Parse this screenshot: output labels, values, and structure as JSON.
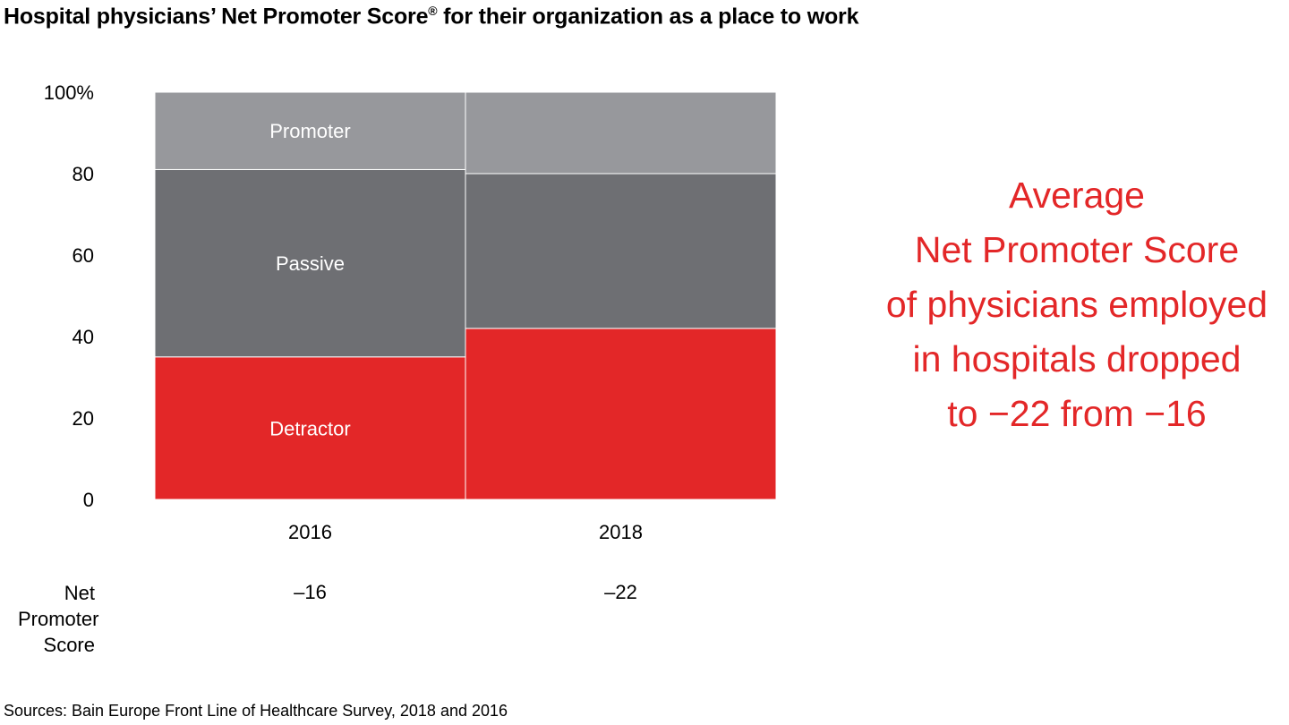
{
  "title": "Hospital physicians’ Net Promoter Score",
  "title_mark": "®",
  "title_rest": " for their organization as a place to work",
  "chart_data": {
    "type": "bar",
    "stacked": true,
    "categories": [
      "2016",
      "2018"
    ],
    "series": [
      {
        "name": "Detractor",
        "values": [
          35,
          42
        ],
        "color": "#e32728"
      },
      {
        "name": "Passive",
        "values": [
          46,
          38
        ],
        "color": "#6e6f73"
      },
      {
        "name": "Promoter",
        "values": [
          19,
          20
        ],
        "color": "#97989c"
      }
    ],
    "ylim": [
      0,
      100
    ],
    "yticks": [
      "0",
      "20",
      "40",
      "60",
      "80",
      "100%"
    ],
    "ytick_values": [
      0,
      20,
      40,
      60,
      80,
      100
    ],
    "grid": false,
    "legend": "labels inside 2016 bar",
    "nps_row_label": "Net Promoter Score",
    "nps_values": [
      "–16",
      "–22"
    ]
  },
  "callout": [
    "Average",
    "Net Promoter Score",
    "of physicians employed",
    "in hospitals dropped",
    "to −22 from −16"
  ],
  "source": "Sources: Bain Europe Front Line of Healthcare Survey, 2018 and 2016"
}
